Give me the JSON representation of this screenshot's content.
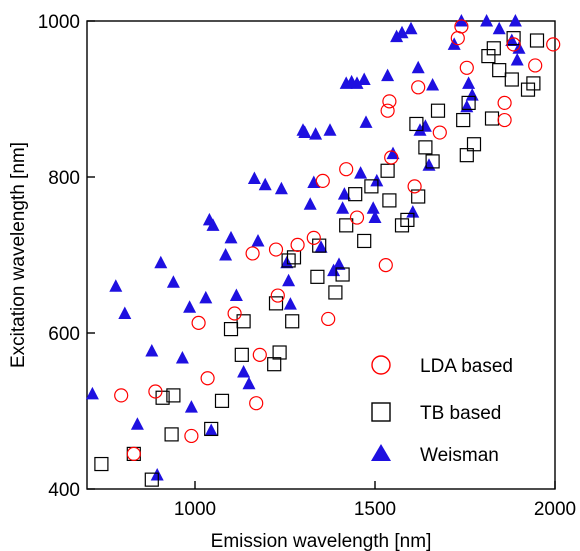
{
  "chart_data": {
    "type": "scatter",
    "title": "",
    "xlabel": "Emission wavelength [nm]",
    "ylabel": "Excitation wavelength [nm]",
    "xlim": [
      700,
      2000
    ],
    "ylim": [
      400,
      1000
    ],
    "xticks": [
      1000,
      1500,
      2000
    ],
    "yticks": [
      400,
      600,
      800,
      1000
    ],
    "grid": false,
    "legend_position": "bottom-right",
    "series": [
      {
        "name": "LDA based",
        "marker": "open-circle",
        "color": "#ff0000",
        "points": [
          [
            795,
            520
          ],
          [
            830,
            445
          ],
          [
            890,
            525
          ],
          [
            990,
            468
          ],
          [
            1010,
            613
          ],
          [
            1035,
            542
          ],
          [
            1110,
            625
          ],
          [
            1160,
            702
          ],
          [
            1170,
            510
          ],
          [
            1180,
            572
          ],
          [
            1225,
            707
          ],
          [
            1230,
            648
          ],
          [
            1285,
            713
          ],
          [
            1330,
            722
          ],
          [
            1355,
            795
          ],
          [
            1370,
            618
          ],
          [
            1420,
            810
          ],
          [
            1450,
            748
          ],
          [
            1530,
            687
          ],
          [
            1535,
            885
          ],
          [
            1540,
            897
          ],
          [
            1545,
            825
          ],
          [
            1610,
            788
          ],
          [
            1620,
            915
          ],
          [
            1680,
            857
          ],
          [
            1730,
            978
          ],
          [
            1740,
            993
          ],
          [
            1755,
            940
          ],
          [
            1860,
            873
          ],
          [
            1860,
            895
          ],
          [
            1885,
            970
          ],
          [
            1945,
            943
          ],
          [
            1995,
            970
          ]
        ]
      },
      {
        "name": "TB based",
        "marker": "open-square",
        "color": "#000000",
        "points": [
          [
            740,
            432
          ],
          [
            830,
            445
          ],
          [
            880,
            412
          ],
          [
            910,
            517
          ],
          [
            935,
            470
          ],
          [
            940,
            520
          ],
          [
            1045,
            477
          ],
          [
            1075,
            513
          ],
          [
            1100,
            605
          ],
          [
            1130,
            572
          ],
          [
            1135,
            615
          ],
          [
            1220,
            560
          ],
          [
            1225,
            638
          ],
          [
            1235,
            575
          ],
          [
            1260,
            693
          ],
          [
            1270,
            615
          ],
          [
            1275,
            697
          ],
          [
            1340,
            672
          ],
          [
            1345,
            712
          ],
          [
            1390,
            652
          ],
          [
            1410,
            675
          ],
          [
            1420,
            738
          ],
          [
            1445,
            778
          ],
          [
            1470,
            718
          ],
          [
            1490,
            788
          ],
          [
            1535,
            808
          ],
          [
            1540,
            770
          ],
          [
            1575,
            738
          ],
          [
            1590,
            745
          ],
          [
            1615,
            868
          ],
          [
            1620,
            775
          ],
          [
            1640,
            838
          ],
          [
            1660,
            820
          ],
          [
            1675,
            885
          ],
          [
            1745,
            873
          ],
          [
            1755,
            828
          ],
          [
            1760,
            895
          ],
          [
            1775,
            842
          ],
          [
            1815,
            955
          ],
          [
            1825,
            875
          ],
          [
            1830,
            965
          ],
          [
            1845,
            937
          ],
          [
            1880,
            925
          ],
          [
            1885,
            978
          ],
          [
            1925,
            912
          ],
          [
            1940,
            920
          ],
          [
            1950,
            975
          ]
        ]
      },
      {
        "name": "Weisman",
        "marker": "filled-triangle",
        "color": "#1e10e0",
        "points": [
          [
            715,
            522
          ],
          [
            780,
            660
          ],
          [
            805,
            625
          ],
          [
            840,
            483
          ],
          [
            880,
            577
          ],
          [
            895,
            418
          ],
          [
            905,
            690
          ],
          [
            940,
            665
          ],
          [
            965,
            568
          ],
          [
            985,
            633
          ],
          [
            990,
            505
          ],
          [
            1030,
            645
          ],
          [
            1040,
            745
          ],
          [
            1050,
            738
          ],
          [
            1045,
            475
          ],
          [
            1085,
            700
          ],
          [
            1100,
            722
          ],
          [
            1115,
            648
          ],
          [
            1135,
            550
          ],
          [
            1150,
            535
          ],
          [
            1165,
            798
          ],
          [
            1175,
            718
          ],
          [
            1195,
            790
          ],
          [
            1240,
            785
          ],
          [
            1255,
            690
          ],
          [
            1260,
            667
          ],
          [
            1265,
            637
          ],
          [
            1300,
            860
          ],
          [
            1305,
            857
          ],
          [
            1320,
            765
          ],
          [
            1330,
            793
          ],
          [
            1335,
            855
          ],
          [
            1350,
            710
          ],
          [
            1375,
            860
          ],
          [
            1385,
            680
          ],
          [
            1400,
            688
          ],
          [
            1410,
            760
          ],
          [
            1415,
            778
          ],
          [
            1420,
            920
          ],
          [
            1435,
            922
          ],
          [
            1450,
            920
          ],
          [
            1460,
            805
          ],
          [
            1470,
            925
          ],
          [
            1475,
            870
          ],
          [
            1495,
            760
          ],
          [
            1500,
            748
          ],
          [
            1505,
            795
          ],
          [
            1535,
            930
          ],
          [
            1550,
            830
          ],
          [
            1560,
            980
          ],
          [
            1575,
            985
          ],
          [
            1600,
            990
          ],
          [
            1605,
            755
          ],
          [
            1620,
            940
          ],
          [
            1625,
            860
          ],
          [
            1640,
            865
          ],
          [
            1650,
            815
          ],
          [
            1660,
            918
          ],
          [
            1720,
            970
          ],
          [
            1740,
            1000
          ],
          [
            1755,
            890
          ],
          [
            1760,
            920
          ],
          [
            1770,
            905
          ],
          [
            1810,
            1000
          ],
          [
            1845,
            990
          ],
          [
            1880,
            975
          ],
          [
            1890,
            1000
          ],
          [
            1895,
            950
          ],
          [
            1900,
            965
          ]
        ]
      }
    ]
  }
}
